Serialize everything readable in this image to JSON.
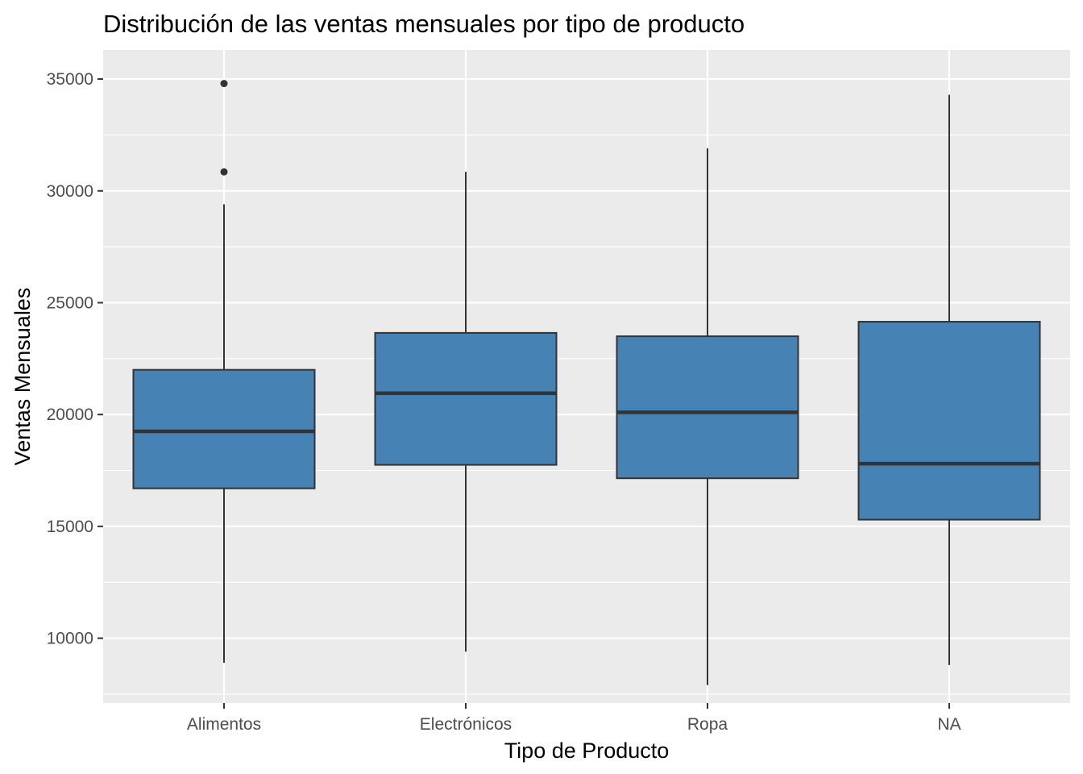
{
  "chart_data": {
    "type": "boxplot",
    "title": "Distribución de las ventas mensuales por tipo de producto",
    "xlabel": "Tipo de Producto",
    "ylabel": "Ventas Mensuales",
    "categories": [
      "Alimentos",
      "Electrónicos",
      "Ropa",
      "NA"
    ],
    "ylim": [
      7100,
      36300
    ],
    "yticks": [
      10000,
      15000,
      20000,
      25000,
      30000,
      35000
    ],
    "ytick_labels": [
      "10000",
      "15000",
      "20000",
      "25000",
      "30000",
      "35000"
    ],
    "grid": true,
    "legend": "none",
    "boxes": [
      {
        "category": "Alimentos",
        "whisker_low": 8900,
        "q1": 16700,
        "median": 19250,
        "q3": 22000,
        "whisker_high": 29400,
        "outliers": [
          30850,
          34800
        ]
      },
      {
        "category": "Electrónicos",
        "whisker_low": 9400,
        "q1": 17750,
        "median": 20950,
        "q3": 23650,
        "whisker_high": 30850,
        "outliers": []
      },
      {
        "category": "Ropa",
        "whisker_low": 7900,
        "q1": 17150,
        "median": 20100,
        "q3": 23500,
        "whisker_high": 31900,
        "outliers": []
      },
      {
        "category": "NA",
        "whisker_low": 8800,
        "q1": 15300,
        "median": 17800,
        "q3": 24150,
        "whisker_high": 34300,
        "outliers": []
      }
    ],
    "colors": {
      "box_fill": "#4682b4",
      "box_line": "#333333",
      "panel": "#ebebeb",
      "grid": "#ffffff",
      "tick_text": "#4d4d4d",
      "tick_mark": "#333333"
    }
  }
}
